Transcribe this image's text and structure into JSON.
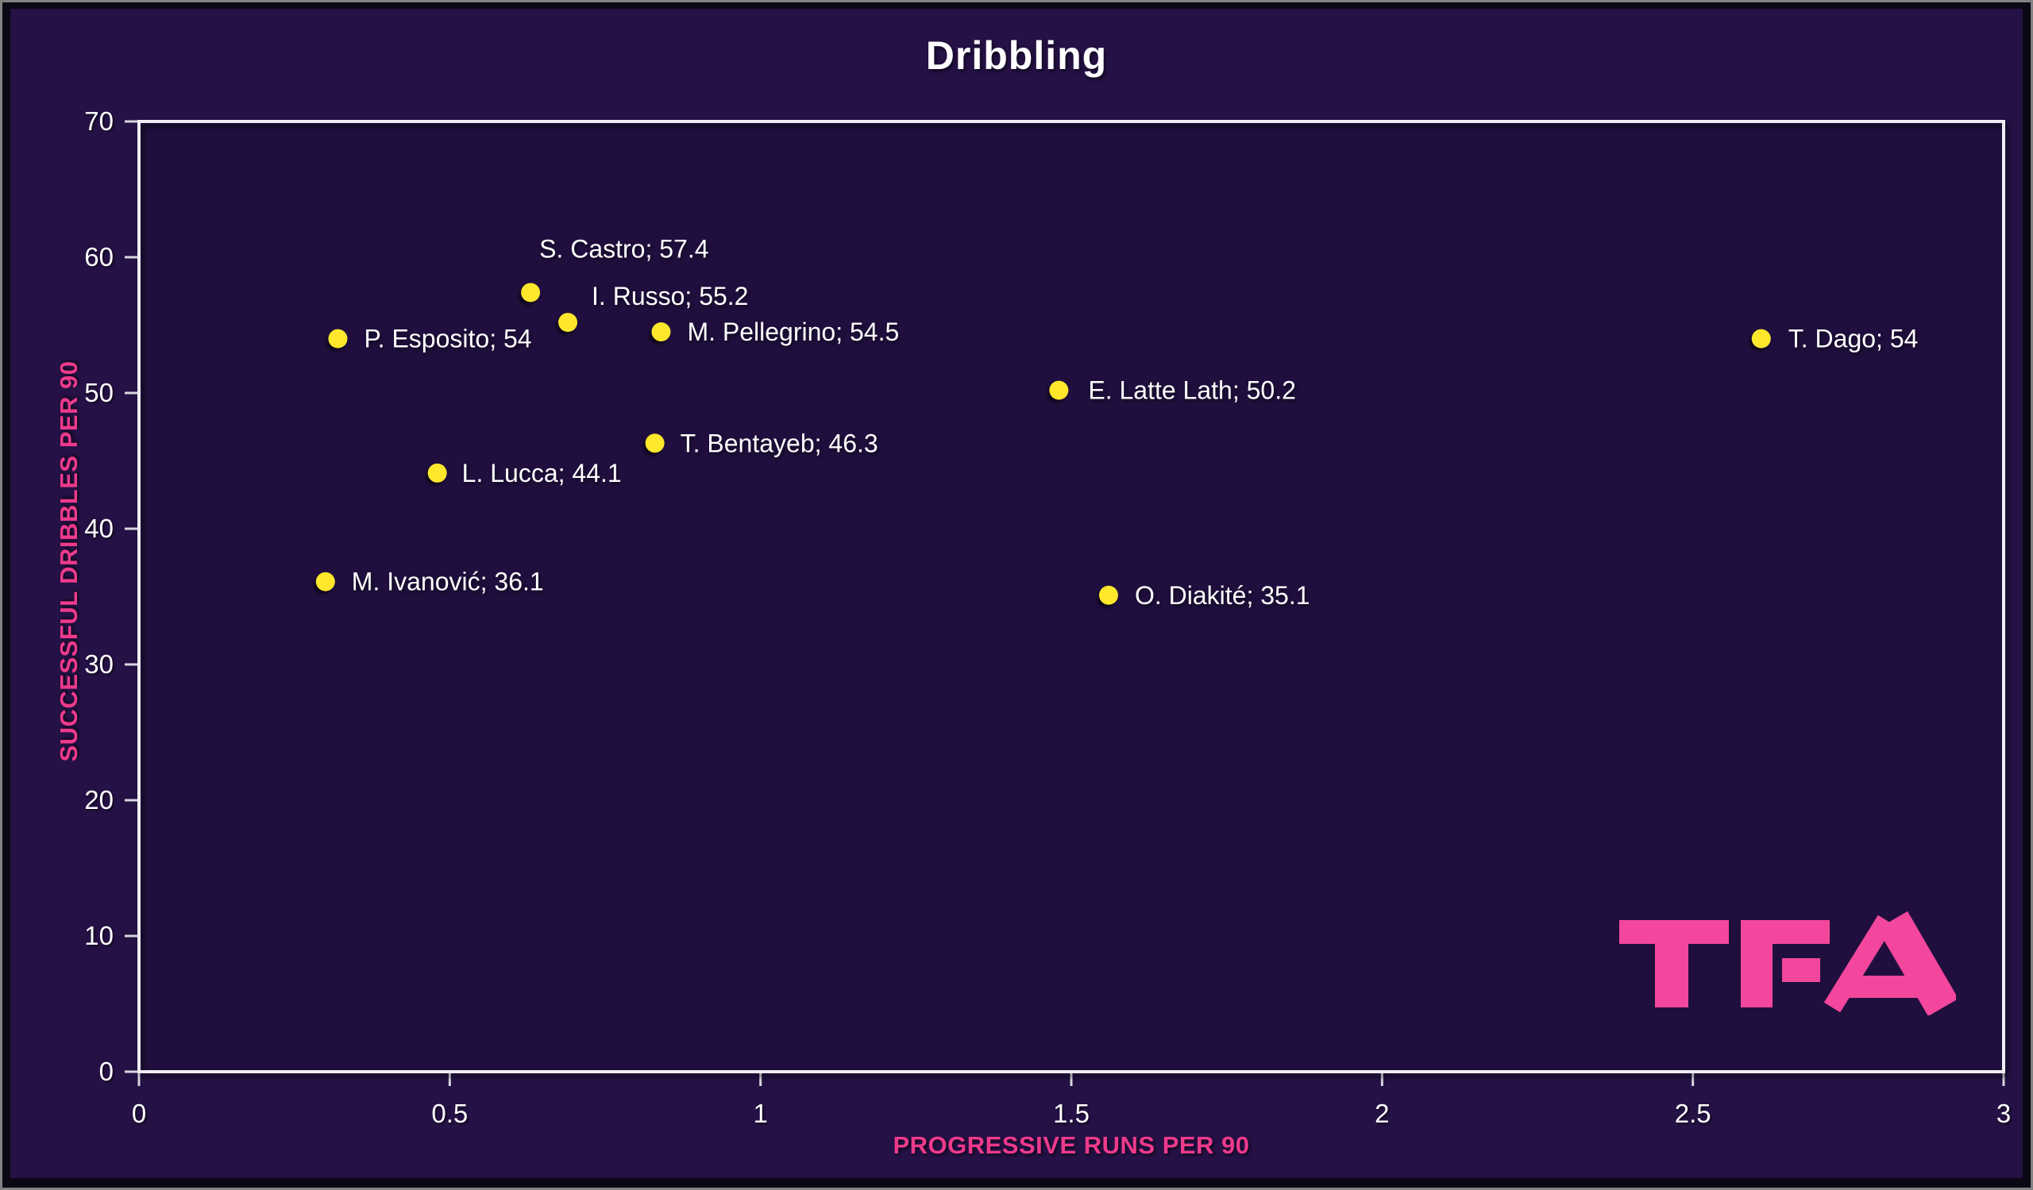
{
  "colors": {
    "canvas_bg": "#251145",
    "plot_bg": "#200f3e",
    "frame_bg": "#0b0714",
    "frame_border": "#828282",
    "plot_border": "#efedf3",
    "tick_text": "#ffffff",
    "label_text": "#ffffff",
    "point_fill": "#ffe72b",
    "axis_title": "#ee3a8c",
    "title_text": "#ffffff",
    "logo_pink": "#f2479c"
  },
  "logo": {
    "text": "TFA"
  },
  "chart_data": {
    "type": "scatter",
    "title": "Dribbling",
    "xlabel": "PROGRESSIVE RUNS PER 90",
    "ylabel": "SUCCESSFUL DRIBBLES PER 90",
    "xlim": [
      0,
      3
    ],
    "ylim": [
      0,
      70
    ],
    "x_ticks": [
      "0",
      "0.5",
      "1",
      "1.5",
      "2",
      "2.5",
      "3"
    ],
    "x_tick_values": [
      0,
      0.5,
      1,
      1.5,
      2,
      2.5,
      3
    ],
    "y_ticks": [
      "0",
      "10",
      "20",
      "30",
      "40",
      "50",
      "60",
      "70"
    ],
    "y_tick_values": [
      0,
      10,
      20,
      30,
      40,
      50,
      60,
      70
    ],
    "grid": false,
    "legend": false,
    "marker": "circle",
    "series": [
      {
        "name": "players",
        "points": [
          {
            "name": "S. Castro",
            "x": 0.63,
            "y": 57.4,
            "label": "S. Castro; 57.4",
            "label_dx": 11,
            "label_dy": -55
          },
          {
            "name": "I. Russo",
            "x": 0.69,
            "y": 55.2,
            "label": "I. Russo; 55.2",
            "label_dx": 30,
            "label_dy": -33
          },
          {
            "name": "P. Esposito",
            "x": 0.32,
            "y": 54,
            "label": "P. Esposito; 54",
            "label_dx": 33,
            "label_dy": 0
          },
          {
            "name": "M. Pellegrino",
            "x": 0.84,
            "y": 54.5,
            "label": "M. Pellegrino; 54.5",
            "label_dx": 33,
            "label_dy": 0
          },
          {
            "name": "T. Dago",
            "x": 2.61,
            "y": 54,
            "label": "T. Dago; 54",
            "label_dx": 34,
            "label_dy": 0
          },
          {
            "name": "E. Latte Lath",
            "x": 1.48,
            "y": 50.2,
            "label": "E. Latte Lath; 50.2",
            "label_dx": 37,
            "label_dy": 0
          },
          {
            "name": "T. Bentayeb",
            "x": 0.83,
            "y": 46.3,
            "label": "T. Bentayeb; 46.3",
            "label_dx": 32,
            "label_dy": 0
          },
          {
            "name": "L. Lucca",
            "x": 0.48,
            "y": 44.1,
            "label": "L. Lucca; 44.1",
            "label_dx": 31,
            "label_dy": 0
          },
          {
            "name": "M. Ivanović",
            "x": 0.3,
            "y": 36.1,
            "label": "M. Ivanović; 36.1",
            "label_dx": 33,
            "label_dy": 0
          },
          {
            "name": "O. Diakité",
            "x": 1.56,
            "y": 35.1,
            "label": "O. Diakité; 35.1",
            "label_dx": 33,
            "label_dy": 0
          }
        ]
      }
    ]
  }
}
